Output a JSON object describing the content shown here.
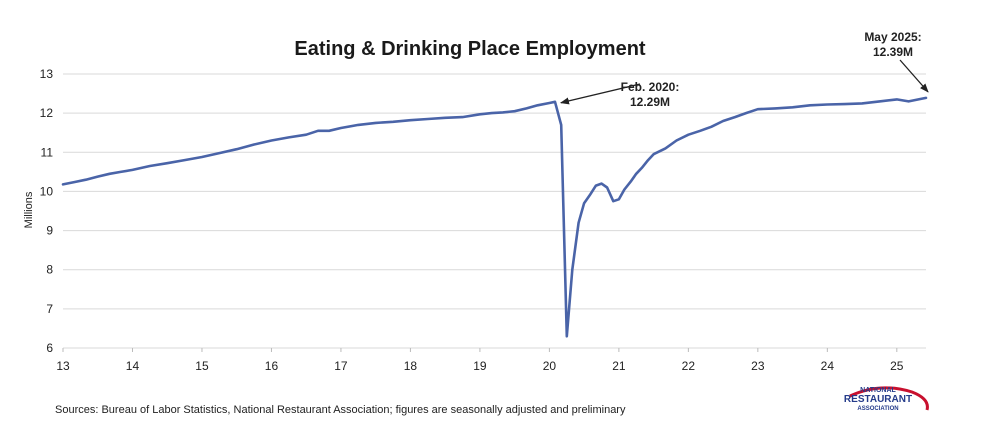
{
  "chart_data": {
    "type": "line",
    "title": "Eating & Drinking Place Employment",
    "ylabel": "Millions",
    "xlabel": "",
    "ylim": [
      6,
      13
    ],
    "xlim": [
      13,
      25.42
    ],
    "grid": true,
    "y_ticks": [
      "6",
      "7",
      "8",
      "9",
      "10",
      "11",
      "12",
      "13"
    ],
    "x_ticks": [
      "13",
      "14",
      "15",
      "16",
      "17",
      "18",
      "19",
      "20",
      "21",
      "22",
      "23",
      "24",
      "25"
    ],
    "line_color": "#4a64a8",
    "series": [
      {
        "x": [
          13.0,
          13.17,
          13.33,
          13.5,
          13.67,
          13.83,
          14.0,
          14.25,
          14.5,
          14.75,
          15.0,
          15.25,
          15.5,
          15.75,
          16.0,
          16.25,
          16.5,
          16.67,
          16.83,
          17.0,
          17.25,
          17.5,
          17.75,
          18.0,
          18.25,
          18.5,
          18.75,
          19.0,
          19.17,
          19.33,
          19.5,
          19.67,
          19.83,
          20.0,
          20.08,
          20.17,
          20.25,
          20.33,
          20.42,
          20.5,
          20.58,
          20.67,
          20.75,
          20.83,
          20.92,
          21.0,
          21.08,
          21.17,
          21.25,
          21.33,
          21.42,
          21.5,
          21.67,
          21.83,
          22.0,
          22.17,
          22.33,
          22.5,
          22.67,
          22.83,
          23.0,
          23.25,
          23.5,
          23.75,
          24.0,
          24.25,
          24.5,
          24.75,
          25.0,
          25.17,
          25.33,
          25.42
        ],
        "y": [
          10.18,
          10.24,
          10.3,
          10.38,
          10.45,
          10.5,
          10.55,
          10.65,
          10.72,
          10.8,
          10.88,
          10.98,
          11.08,
          11.2,
          11.3,
          11.38,
          11.45,
          11.55,
          11.55,
          11.62,
          11.7,
          11.75,
          11.78,
          11.82,
          11.85,
          11.88,
          11.9,
          11.97,
          12.0,
          12.02,
          12.05,
          12.12,
          12.2,
          12.26,
          12.29,
          11.7,
          6.3,
          8.0,
          9.2,
          9.7,
          9.9,
          10.15,
          10.2,
          10.1,
          9.75,
          9.8,
          10.05,
          10.25,
          10.45,
          10.6,
          10.8,
          10.95,
          11.1,
          11.3,
          11.45,
          11.55,
          11.65,
          11.8,
          11.9,
          12.0,
          12.1,
          12.12,
          12.15,
          12.2,
          12.22,
          12.23,
          12.25,
          12.3,
          12.35,
          12.3,
          12.36,
          12.39
        ]
      }
    ],
    "annotations": [
      {
        "line1": "Feb. 2020:",
        "line2": "12.29M",
        "x": 20.08,
        "y": 12.29
      },
      {
        "line1": "May 2025:",
        "line2": "12.39M",
        "x": 25.42,
        "y": 12.39
      }
    ],
    "source": "Sources: Bureau of Labor Statistics, National Restaurant Association; figures are seasonally adjusted and preliminary",
    "logo": {
      "line1": "NATIONAL",
      "line2": "RESTAURANT",
      "line3": "ASSOCIATION",
      "accent_color": "#c8102e",
      "text_color": "#243b8a"
    }
  }
}
